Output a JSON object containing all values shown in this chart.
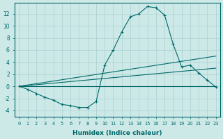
{
  "xlabel": "Humidex (Indice chaleur)",
  "background_color": "#cce9e8",
  "grid_color": "#aad0d0",
  "line_color": "#006868",
  "xlim": [
    -0.5,
    23.5
  ],
  "ylim": [
    -5.0,
    13.8
  ],
  "yticks": [
    -4,
    -2,
    0,
    2,
    4,
    6,
    8,
    10,
    12
  ],
  "xtick_labels": [
    "0",
    "1",
    "2",
    "3",
    "4",
    "5",
    "6",
    "7",
    "8",
    "9",
    "10",
    "11",
    "12",
    "13",
    "14",
    "15",
    "16",
    "17",
    "18",
    "19",
    "20",
    "21",
    "22",
    "23"
  ],
  "curve_outer": {
    "x": [
      0,
      1,
      2,
      3,
      4,
      5,
      6,
      7,
      8,
      9,
      10,
      11,
      12,
      13,
      14,
      15,
      16,
      17,
      18,
      19,
      20,
      21,
      22,
      23
    ],
    "y": [
      0,
      -0.5,
      -1.2,
      -1.8,
      -2.3,
      -3.0,
      -3.2,
      -3.5,
      -3.5,
      -2.5,
      3.5,
      6.0,
      9.0,
      11.5,
      12.0,
      13.2,
      13.0,
      11.8,
      7.0,
      3.2,
      3.5,
      2.2,
      1.0,
      -0.1
    ]
  },
  "line_upper": {
    "x": [
      0,
      23
    ],
    "y": [
      0,
      5.0
    ]
  },
  "line_mid": {
    "x": [
      0,
      23
    ],
    "y": [
      0,
      3.0
    ]
  },
  "line_lower": {
    "x": [
      0,
      23
    ],
    "y": [
      0,
      0.0
    ]
  }
}
